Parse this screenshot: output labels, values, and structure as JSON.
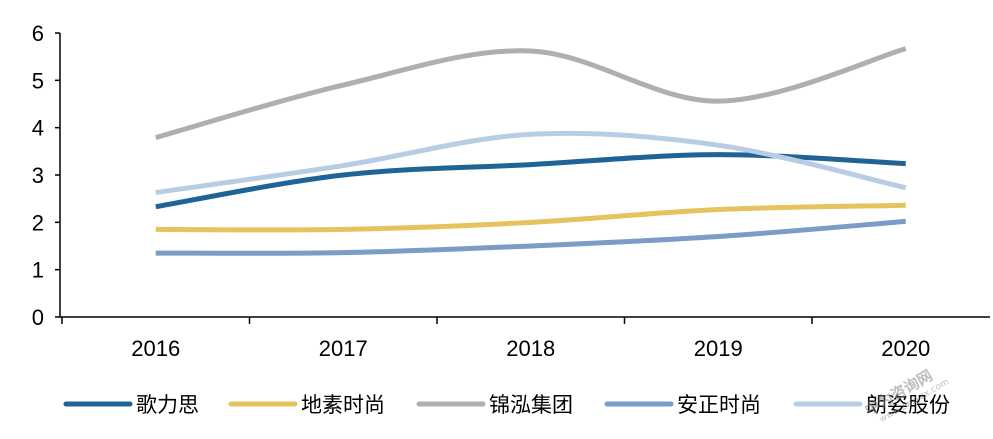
{
  "chart_data": {
    "type": "line",
    "title": "",
    "xlabel": "",
    "ylabel": "",
    "categories": [
      "2016",
      "2017",
      "2018",
      "2019",
      "2020"
    ],
    "ylim": [
      0,
      6
    ],
    "yticks": [
      "0",
      "1",
      "2",
      "3",
      "4",
      "5",
      "6"
    ],
    "grid": false,
    "legend_position": "bottom",
    "smooth": true,
    "series": [
      {
        "name": "歌力思",
        "color": "#1f6397",
        "values": [
          2.33,
          3.0,
          3.22,
          3.43,
          3.24
        ]
      },
      {
        "name": "地素时尚",
        "color": "#e5c35d",
        "values": [
          1.85,
          1.85,
          2.0,
          2.27,
          2.36
        ]
      },
      {
        "name": "锦泓集团",
        "color": "#afafaf",
        "values": [
          3.79,
          4.9,
          5.62,
          4.56,
          5.67
        ]
      },
      {
        "name": "安正时尚",
        "color": "#7a9cc6",
        "values": [
          1.35,
          1.36,
          1.5,
          1.7,
          2.02
        ]
      },
      {
        "name": "朗姿股份",
        "color": "#b7cde5",
        "values": [
          2.63,
          3.2,
          3.86,
          3.63,
          2.73
        ]
      }
    ]
  },
  "watermark": {
    "text": "中为咨询网",
    "subtext": "www.zwzyzx.com"
  }
}
